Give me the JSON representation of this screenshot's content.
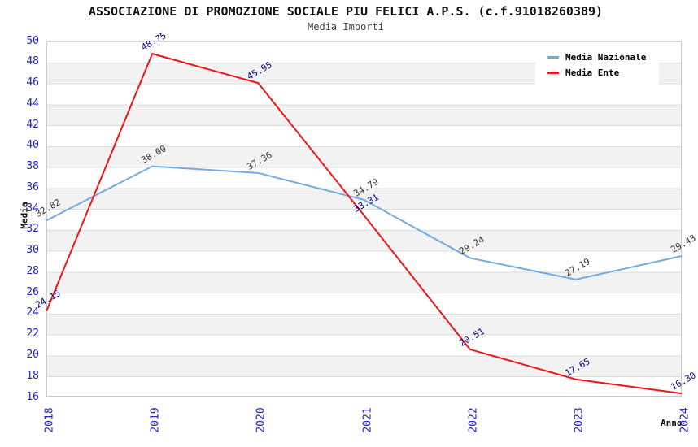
{
  "header": {
    "title": "ASSOCIAZIONE DI PROMOZIONE SOCIALE PIU FELICI A.P.S. (c.f.91018260389)",
    "subtitle": "Media Importi"
  },
  "legend": {
    "items": [
      {
        "label": "Media Nazionale",
        "color": "#74aadf"
      },
      {
        "label": "Media Ente",
        "color": "#ee1515"
      }
    ]
  },
  "axes": {
    "y_title": "Media",
    "x_title": "Anno",
    "tick_color": "#2222cc"
  },
  "chart_data": {
    "type": "line",
    "title": "Media Importi",
    "x": [
      "2018",
      "2019",
      "2020",
      "2021",
      "2022",
      "2023",
      "2024"
    ],
    "series": [
      {
        "name": "Media Nazionale",
        "color": "#74aadf",
        "label_color": "#333333",
        "values": [
          32.82,
          38.0,
          37.36,
          34.79,
          29.24,
          27.19,
          29.43
        ]
      },
      {
        "name": "Media Ente",
        "color": "#ee1515",
        "label_color": "#00008b",
        "values": [
          24.15,
          48.75,
          45.95,
          33.31,
          20.51,
          17.65,
          16.3
        ]
      }
    ],
    "xlabel": "Anno",
    "ylabel": "Media",
    "ylim": [
      16,
      50
    ],
    "ytick_step": 2,
    "grid": "horizontal-bands-alternating",
    "legend_position": "top-right"
  }
}
